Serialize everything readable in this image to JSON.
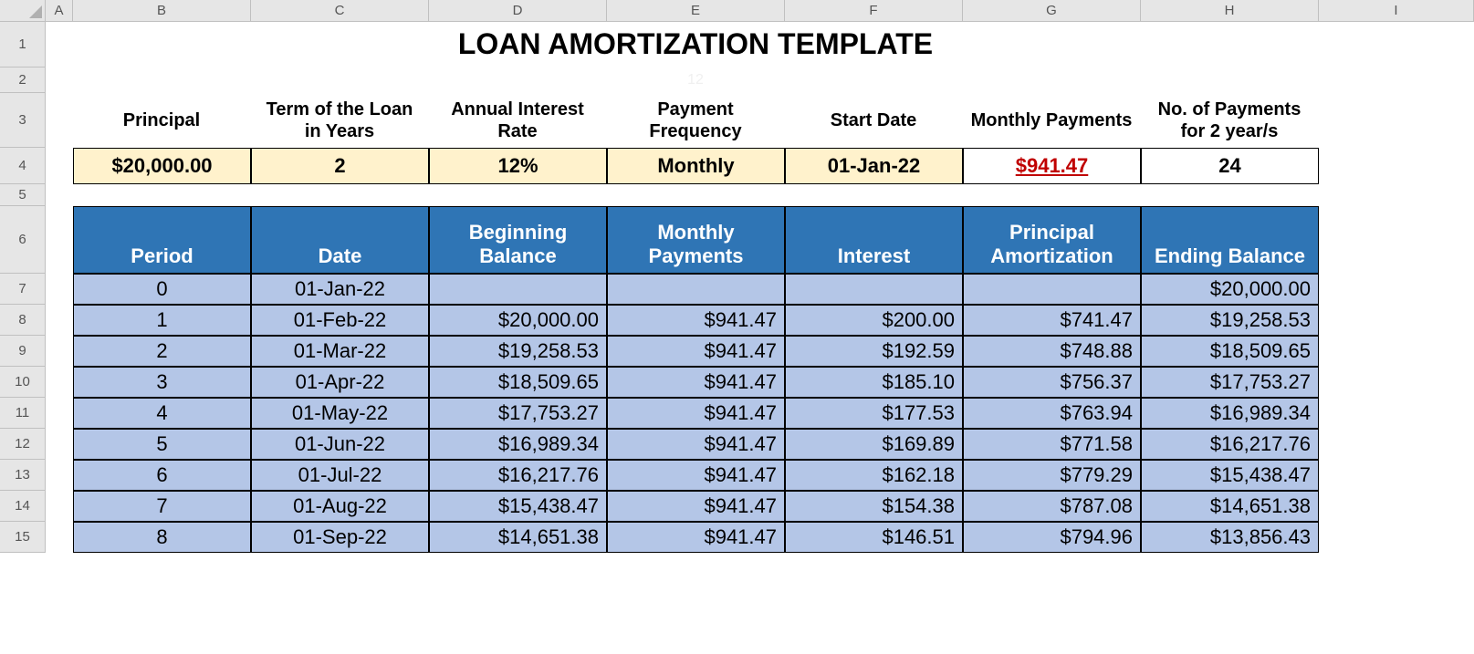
{
  "columns": [
    "A",
    "B",
    "C",
    "D",
    "E",
    "F",
    "G",
    "H",
    "I"
  ],
  "row_heights": {
    "r1": 50,
    "r2": 28,
    "r3": 60,
    "r4": 40,
    "r5": 24,
    "r6": 74,
    "r7": 34,
    "r8": 34,
    "r9": 34,
    "r10": 34,
    "r11": 34,
    "r12": 34,
    "r13": 34,
    "r14": 34,
    "r15": 34
  },
  "title": "LOAN AMORTIZATION TEMPLATE",
  "ghost_text": "12",
  "params": {
    "headers": [
      "Principal",
      "Term of the Loan in Years",
      "Annual Interest Rate",
      "Payment Frequency",
      "Start Date",
      "Monthly Payments",
      "No. of Payments for 2 year/s"
    ],
    "values": [
      "$20,000.00",
      "2",
      "12%",
      "Monthly",
      "01-Jan-22",
      "$941.47",
      "24"
    ],
    "cream_cols": [
      0,
      1,
      2,
      3,
      4
    ],
    "red_col": 5
  },
  "table": {
    "headers": [
      "Period",
      "Date",
      "Beginning Balance",
      "Monthly Payments",
      "Interest",
      "Principal Amortization",
      "Ending Balance"
    ],
    "rows": [
      {
        "period": "0",
        "date": "01-Jan-22",
        "beg": "",
        "pay": "",
        "int": "",
        "prin": "",
        "end": "$20,000.00"
      },
      {
        "period": "1",
        "date": "01-Feb-22",
        "beg": "$20,000.00",
        "pay": "$941.47",
        "int": "$200.00",
        "prin": "$741.47",
        "end": "$19,258.53"
      },
      {
        "period": "2",
        "date": "01-Mar-22",
        "beg": "$19,258.53",
        "pay": "$941.47",
        "int": "$192.59",
        "prin": "$748.88",
        "end": "$18,509.65"
      },
      {
        "period": "3",
        "date": "01-Apr-22",
        "beg": "$18,509.65",
        "pay": "$941.47",
        "int": "$185.10",
        "prin": "$756.37",
        "end": "$17,753.27"
      },
      {
        "period": "4",
        "date": "01-May-22",
        "beg": "$17,753.27",
        "pay": "$941.47",
        "int": "$177.53",
        "prin": "$763.94",
        "end": "$16,989.34"
      },
      {
        "period": "5",
        "date": "01-Jun-22",
        "beg": "$16,989.34",
        "pay": "$941.47",
        "int": "$169.89",
        "prin": "$771.58",
        "end": "$16,217.76"
      },
      {
        "period": "6",
        "date": "01-Jul-22",
        "beg": "$16,217.76",
        "pay": "$941.47",
        "int": "$162.18",
        "prin": "$779.29",
        "end": "$15,438.47"
      },
      {
        "period": "7",
        "date": "01-Aug-22",
        "beg": "$15,438.47",
        "pay": "$941.47",
        "int": "$154.38",
        "prin": "$787.08",
        "end": "$14,651.38"
      },
      {
        "period": "8",
        "date": "01-Sep-22",
        "beg": "$14,651.38",
        "pay": "$941.47",
        "int": "$146.51",
        "prin": "$794.96",
        "end": "$13,856.43"
      }
    ]
  },
  "colors": {
    "header_bg": "#e6e6e6",
    "cream": "#fff2cc",
    "tbl_header": "#2f75b5",
    "tbl_cell": "#b4c6e7",
    "red": "#c00000"
  }
}
